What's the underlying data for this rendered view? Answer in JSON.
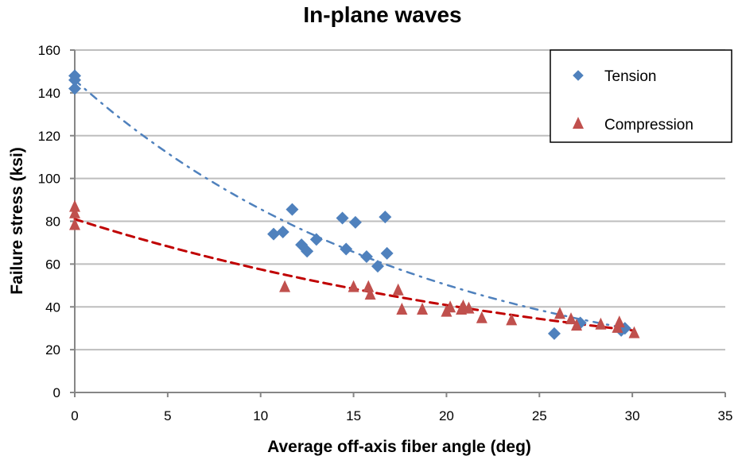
{
  "chart_data": {
    "type": "scatter",
    "title": "In-plane waves",
    "xlabel": "Average off-axis fiber angle (deg)",
    "ylabel": "Failure stress (ksi)",
    "xlim": [
      0,
      35
    ],
    "ylim": [
      0,
      160
    ],
    "xticks": [
      0,
      5,
      10,
      15,
      20,
      25,
      30,
      35
    ],
    "yticks": [
      0,
      20,
      40,
      60,
      80,
      100,
      120,
      140,
      160
    ],
    "grid": "horizontal",
    "legend_position": "top-right",
    "series": [
      {
        "name": "Tension",
        "marker": "diamond",
        "color": "#4F81BD",
        "points": [
          [
            0,
            148
          ],
          [
            0,
            146
          ],
          [
            0,
            142
          ],
          [
            10.7,
            74
          ],
          [
            11.2,
            75
          ],
          [
            11.7,
            85.5
          ],
          [
            12.2,
            69
          ],
          [
            12.5,
            66
          ],
          [
            13.0,
            71.5
          ],
          [
            14.4,
            81.5
          ],
          [
            14.6,
            67
          ],
          [
            15.1,
            79.5
          ],
          [
            15.7,
            63.5
          ],
          [
            16.3,
            59
          ],
          [
            16.7,
            82
          ],
          [
            16.8,
            65
          ],
          [
            25.8,
            27.5
          ],
          [
            27.2,
            32.5
          ],
          [
            29.4,
            29
          ],
          [
            29.6,
            30
          ]
        ],
        "trendline": {
          "style": "dash-dot",
          "color": "#4F81BD",
          "type": "exponential",
          "start": [
            0,
            146
          ],
          "end": [
            30,
            29.5
          ]
        }
      },
      {
        "name": "Compression",
        "marker": "triangle",
        "color": "#C0504D",
        "points": [
          [
            0,
            87
          ],
          [
            0,
            84
          ],
          [
            0,
            78.5
          ],
          [
            11.3,
            49.5
          ],
          [
            15.0,
            49.5
          ],
          [
            15.8,
            49.5
          ],
          [
            15.9,
            46
          ],
          [
            17.4,
            48
          ],
          [
            17.6,
            39
          ],
          [
            18.7,
            39
          ],
          [
            20.0,
            38
          ],
          [
            20.2,
            40
          ],
          [
            20.8,
            39
          ],
          [
            20.9,
            40.5
          ],
          [
            21.2,
            39.5
          ],
          [
            21.9,
            35
          ],
          [
            23.5,
            34
          ],
          [
            26.1,
            37
          ],
          [
            26.7,
            34.5
          ],
          [
            27.0,
            31.5
          ],
          [
            28.3,
            32
          ],
          [
            29.2,
            30.5
          ],
          [
            29.3,
            33
          ],
          [
            30.1,
            28
          ]
        ],
        "trendline": {
          "style": "dashed",
          "color": "#C00000",
          "type": "exponential",
          "start": [
            0,
            81
          ],
          "end": [
            30,
            29
          ]
        }
      }
    ]
  }
}
